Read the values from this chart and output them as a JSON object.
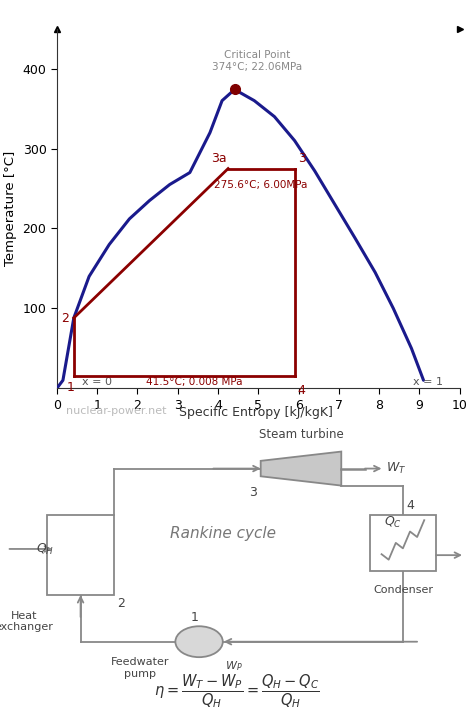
{
  "ylabel": "Temperature [°C]",
  "xlabel": "Specific Entropy [kJ/kgK]",
  "watermark": "nuclear-power.net",
  "xlim": [
    0,
    10
  ],
  "ylim": [
    0,
    450
  ],
  "xticks": [
    0,
    1,
    2,
    3,
    4,
    5,
    6,
    7,
    8,
    9,
    10
  ],
  "yticks": [
    100,
    200,
    300,
    400
  ],
  "curve_color": "#1a1a8c",
  "rankine_color": "#8b0000",
  "critical_point": [
    4.41,
    374
  ],
  "critical_label": "Critical Point\n374°C; 22.06MPa",
  "label_275": "275.6°C; 6.00MPa",
  "label_41": "41.5°C; 0.008 MPa",
  "label_x0": "x = 0",
  "label_x1": "x = 1",
  "point1": [
    0.42,
    15
  ],
  "point2": [
    0.42,
    88
  ],
  "point3a": [
    4.25,
    275
  ],
  "point3": [
    5.9,
    275
  ],
  "point4": [
    5.9,
    15
  ],
  "sat_liquid_x": [
    0.0,
    0.15,
    0.42,
    0.8,
    1.3,
    1.8,
    2.3,
    2.8,
    3.3,
    3.8,
    4.1,
    4.41
  ],
  "sat_liquid_y": [
    0,
    10,
    88,
    140,
    180,
    212,
    235,
    255,
    270,
    320,
    360,
    374
  ],
  "sat_vapor_x": [
    4.41,
    4.9,
    5.4,
    5.9,
    6.4,
    6.9,
    7.4,
    7.9,
    8.35,
    8.8,
    9.1
  ],
  "sat_vapor_y": [
    374,
    360,
    340,
    310,
    272,
    230,
    188,
    145,
    100,
    50,
    10
  ],
  "bg_color": "#ffffff",
  "dgray": "#888888"
}
